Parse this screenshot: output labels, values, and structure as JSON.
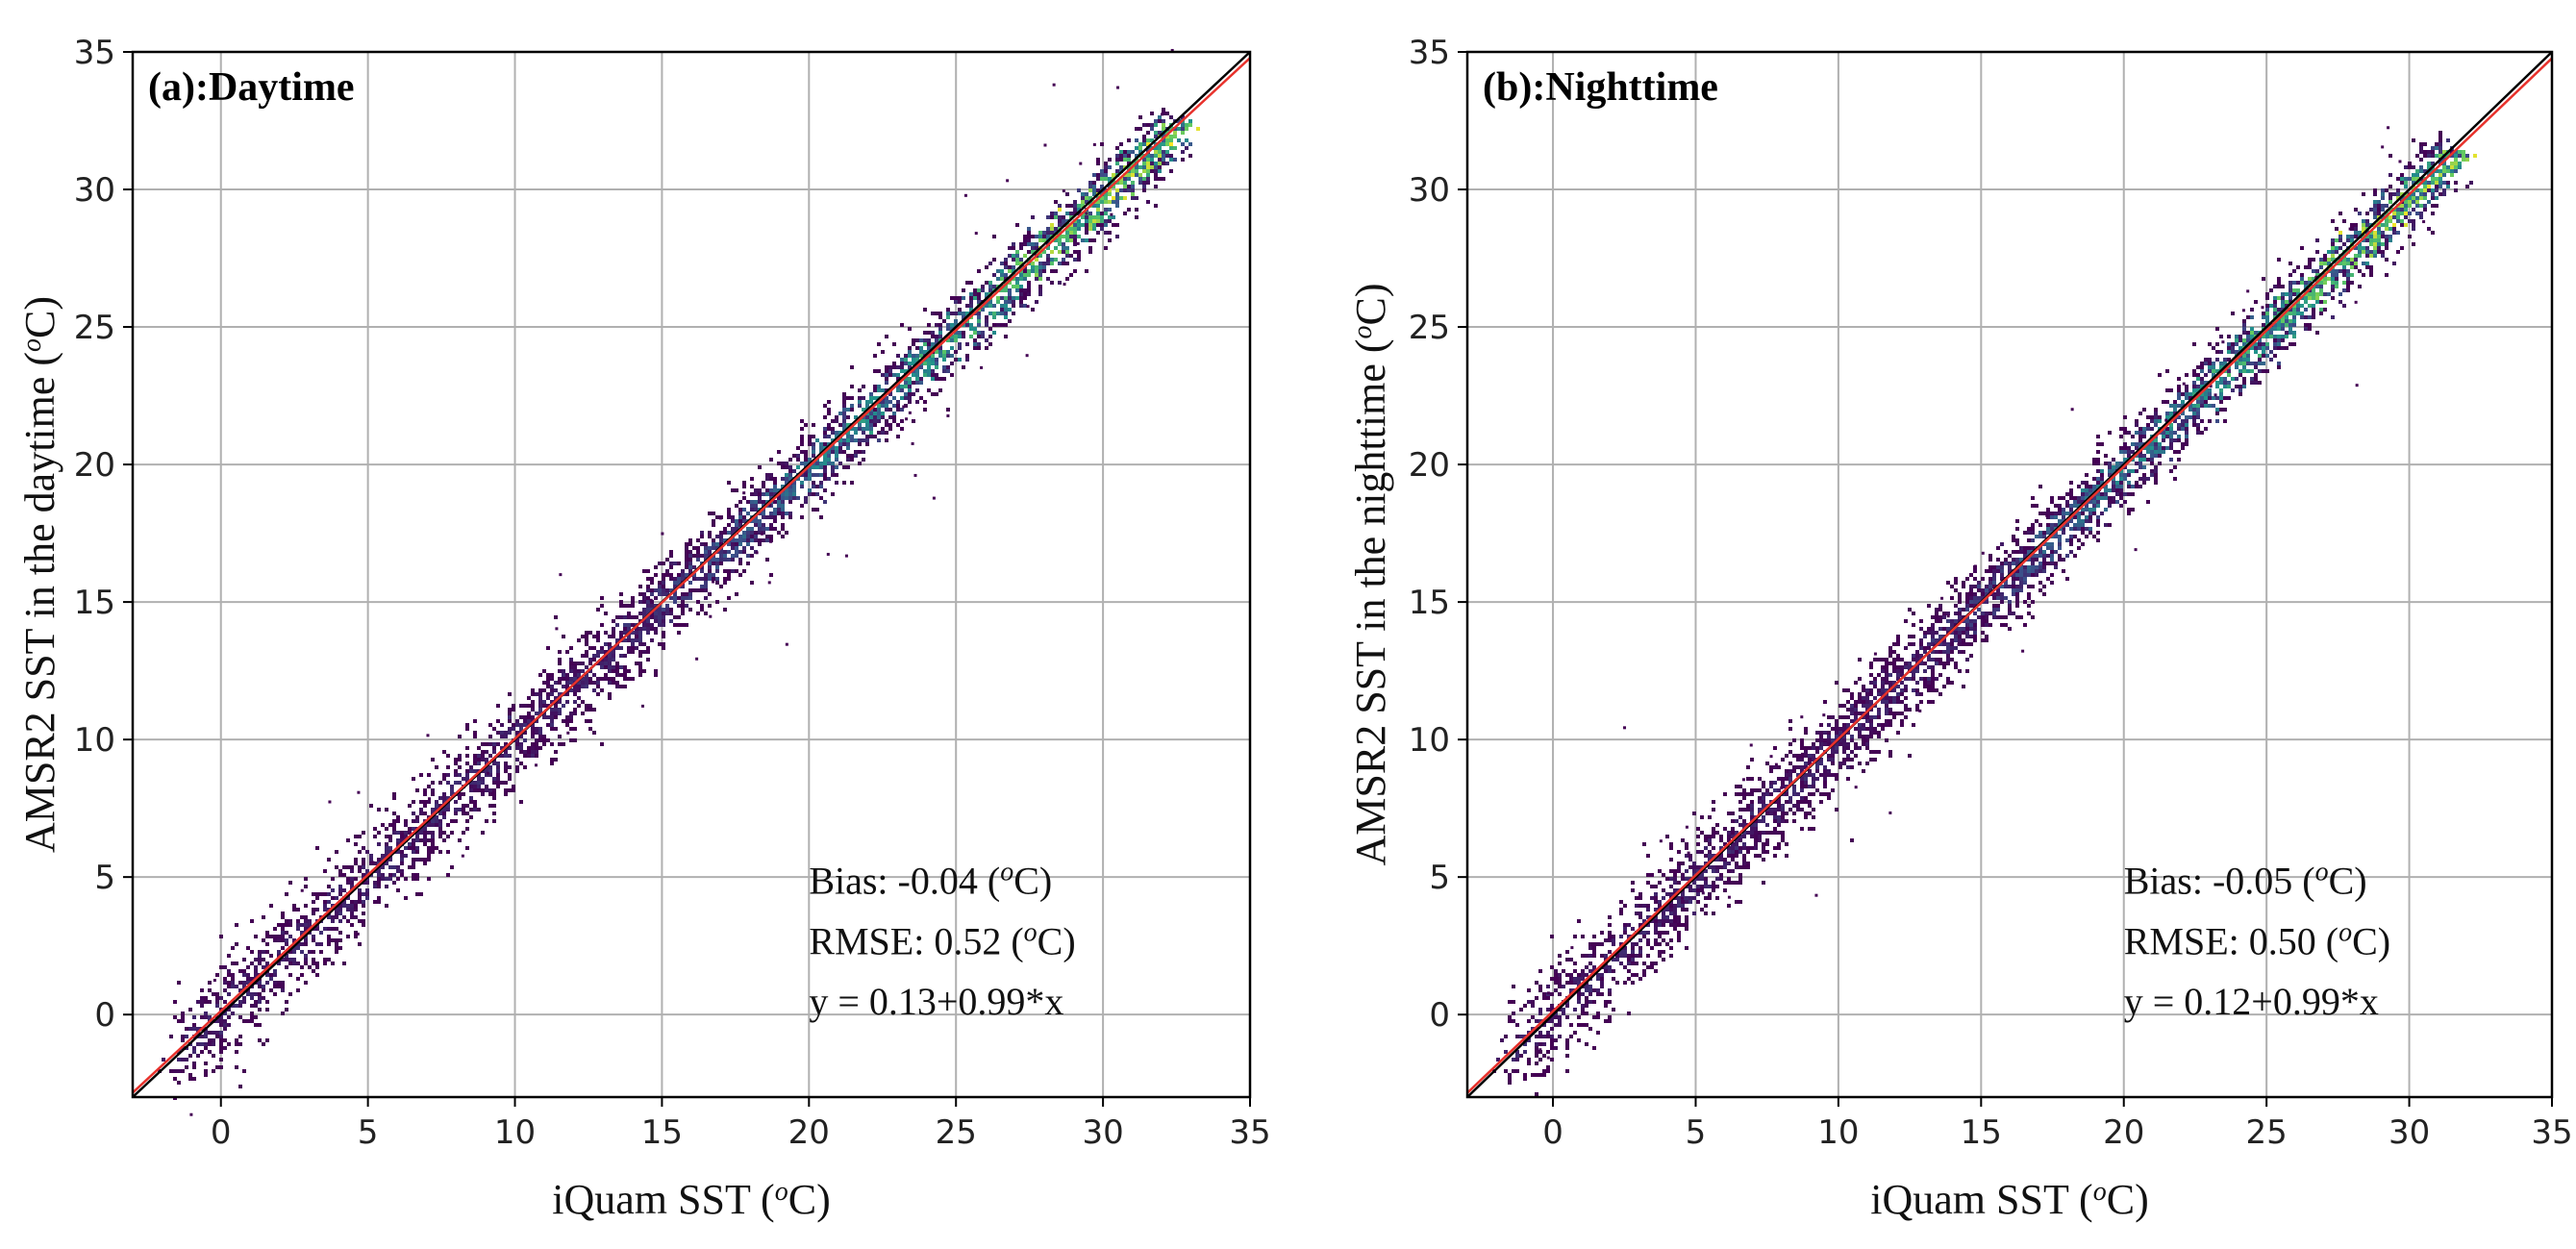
{
  "chart_data": [
    {
      "type": "scatter",
      "title": "(a):Daytime",
      "xlabel": "iQuam SST (",
      "xlabel_sup": "o",
      "xlabel_end": "C)",
      "ylabel": "AMSR2 SST in the daytime (",
      "ylabel_sup": "o",
      "ylabel_end": "C)",
      "xlim": [
        -3,
        35
      ],
      "ylim": [
        -3,
        35
      ],
      "xticks": [
        0,
        5,
        10,
        15,
        20,
        25,
        30,
        35
      ],
      "yticks": [
        0,
        5,
        10,
        15,
        20,
        25,
        30,
        35
      ],
      "grid": true,
      "density_colormap": [
        "#440154",
        "#3b528b",
        "#21918c",
        "#5ec962",
        "#fde725"
      ],
      "density_range": [
        -1.6,
        32.5
      ],
      "one_to_one_line_color": "#000000",
      "fit_line_color": "#e8322c",
      "fit": {
        "intercept": 0.13,
        "slope": 0.99
      },
      "stats": {
        "bias_label": "Bias: -0.04 (",
        "rmse_label": "RMSE: 0.52 (",
        "unit_sup": "o",
        "unit_end": "C)",
        "fit_label": "y = 0.13+0.99*x"
      }
    },
    {
      "type": "scatter",
      "title": "(b):Nighttime",
      "xlabel": "iQuam SST (",
      "xlabel_sup": "o",
      "xlabel_end": "C)",
      "ylabel": "AMSR2 SST in the nighttime (",
      "ylabel_sup": "o",
      "ylabel_end": "C)",
      "xlim": [
        -3,
        35
      ],
      "ylim": [
        -3,
        35
      ],
      "xticks": [
        0,
        5,
        10,
        15,
        20,
        25,
        30,
        35
      ],
      "yticks": [
        0,
        5,
        10,
        15,
        20,
        25,
        30,
        35
      ],
      "grid": true,
      "density_colormap": [
        "#440154",
        "#3b528b",
        "#21918c",
        "#5ec962",
        "#fde725"
      ],
      "density_range": [
        -1.6,
        31.5
      ],
      "one_to_one_line_color": "#000000",
      "fit_line_color": "#e8322c",
      "fit": {
        "intercept": 0.12,
        "slope": 0.99
      },
      "stats": {
        "bias_label": "Bias: -0.05 (",
        "rmse_label": "RMSE: 0.50 (",
        "unit_sup": "o",
        "unit_end": "C)",
        "fit_label": "y = 0.12+0.99*x"
      }
    }
  ]
}
